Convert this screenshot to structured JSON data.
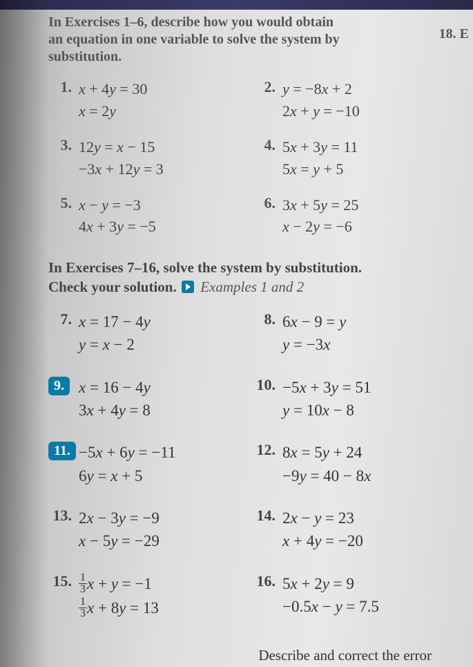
{
  "topbar_color": "#2a2a6a",
  "side_number": "18.  E",
  "section1": {
    "intro_l1": "In Exercises 1–6, describe how you would obtain",
    "intro_l2": "an equation in one variable to solve the system by",
    "intro_l3": "substitution."
  },
  "problems1": [
    {
      "n": "1.",
      "a": "x + 4y = 30",
      "b": "x = 2y"
    },
    {
      "n": "2.",
      "a": "y = −8x + 2",
      "b": "2x + y = −10"
    },
    {
      "n": "3.",
      "a": "12y = x − 15",
      "b": "−3x + 12y = 3"
    },
    {
      "n": "4.",
      "a": "5x + 3y = 11",
      "b": "5x = y + 5"
    },
    {
      "n": "5.",
      "a": "x − y = −3",
      "b": "4x + 3y = −5"
    },
    {
      "n": "6.",
      "a": "3x + 5y = 25",
      "b": "x − 2y = −6"
    }
  ],
  "section2": {
    "intro_l1": "In Exercises 7–16, solve the system by substitution.",
    "intro_l2a": "Check your solution.",
    "examples": "Examples 1 and 2"
  },
  "problems2": [
    {
      "n": "7.",
      "boxed": false,
      "a": "x = 17 − 4y",
      "b": "y = x − 2"
    },
    {
      "n": "8.",
      "boxed": false,
      "a": "6x − 9 = y",
      "b": "y = −3x"
    },
    {
      "n": "9.",
      "boxed": true,
      "a": "x = 16 − 4y",
      "b": "3x + 4y = 8"
    },
    {
      "n": "10.",
      "boxed": false,
      "a": "−5x + 3y = 51",
      "b": "y = 10x − 8"
    },
    {
      "n": "11.",
      "boxed": true,
      "a": "−5x + 6y = −11",
      "b": "6y = x + 5"
    },
    {
      "n": "12.",
      "boxed": false,
      "a": "8x = 5y + 24",
      "b": "−9y = 40 − 8x"
    },
    {
      "n": "13.",
      "boxed": false,
      "a": "2x − 3y = −9",
      "b": "x − 5y = −29"
    },
    {
      "n": "14.",
      "boxed": false,
      "a": "2x − y = 23",
      "b": "x + 4y = −20"
    },
    {
      "n": "15.",
      "boxed": false,
      "frac": true,
      "f1t": "1",
      "f1b": "3",
      "a_rest": "x + y = −1",
      "f2t": "1",
      "f2b": "3",
      "b_rest": "x + 8y = 13"
    },
    {
      "n": "16.",
      "boxed": false,
      "a": "5x + 2y = 9",
      "b": "−0.5x − y = 7.5"
    }
  ],
  "bottom_text": "Describe and correct the error"
}
